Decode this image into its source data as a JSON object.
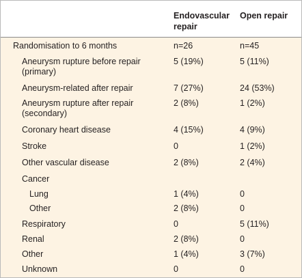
{
  "columns": {
    "endovascular": "Endovascular repair",
    "open": "Open repair"
  },
  "rows": [
    {
      "label": "Randomisation to 6 months",
      "endo": "n=26",
      "open": "n=45"
    },
    {
      "label": "Aneurysm rupture before repair (primary)",
      "endo": "5 (19%)",
      "open": "5 (11%)"
    },
    {
      "label": "Aneurysm-related after repair",
      "endo": "7 (27%)",
      "open": "24 (53%)"
    },
    {
      "label": "Aneurysm rupture after repair (secondary)",
      "endo": "2 (8%)",
      "open": "1 (2%)"
    },
    {
      "label": "Coronary heart disease",
      "endo": "4 (15%)",
      "open": "4 (9%)"
    },
    {
      "label": "Stroke",
      "endo": "0",
      "open": "1 (2%)"
    },
    {
      "label": "Other vascular disease",
      "endo": "2 (8%)",
      "open": "2 (4%)"
    },
    {
      "label": "Cancer",
      "endo": "",
      "open": ""
    },
    {
      "label": "Lung",
      "endo": "1 (4%)",
      "open": "0"
    },
    {
      "label": "Other",
      "endo": "2 (8%)",
      "open": "0"
    },
    {
      "label": "Respiratory",
      "endo": "0",
      "open": "5 (11%)"
    },
    {
      "label": "Renal",
      "endo": "2 (8%)",
      "open": "0"
    },
    {
      "label": "Other",
      "endo": "1 (4%)",
      "open": "3 (7%)"
    },
    {
      "label": "Unknown",
      "endo": "0",
      "open": "0"
    }
  ]
}
